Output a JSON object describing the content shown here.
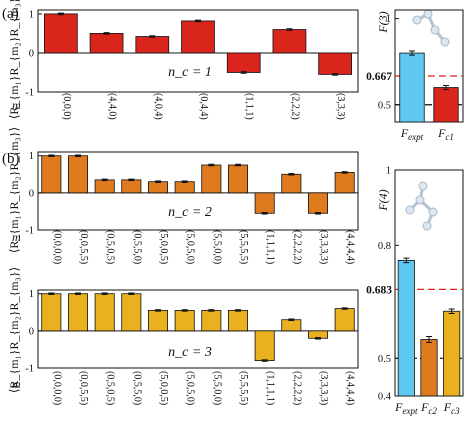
{
  "panel_labels": {
    "a": "(a)",
    "b": "(b)"
  },
  "m_label": "m⃗",
  "corr_ylabel": "⟨R_{m₁}R_{m₂}R_{m₃}⟩",
  "chart_data": [
    {
      "type": "bar",
      "panel": "a",
      "annotation": "n_c = 1",
      "color": "#d9251c",
      "categories": [
        "(0,0,0)",
        "(4,4,0)",
        "(4,0,4)",
        "(0,4,4)",
        "(1,1,1)",
        "(2,2,2)",
        "(3,3,3)"
      ],
      "values": [
        1.0,
        0.5,
        0.42,
        0.82,
        -0.5,
        0.6,
        -0.55
      ],
      "errors": [
        0.02,
        0.02,
        0.02,
        0.02,
        0.02,
        0.02,
        0.02
      ],
      "yticks": [
        -1,
        0,
        1
      ],
      "ylim": [
        -1,
        1.1
      ]
    },
    {
      "type": "bar",
      "panel": "b-top",
      "annotation": "n_c = 2",
      "color": "#e07a1f",
      "categories": [
        "(0,0,0,0)",
        "(0,0,5,5)",
        "(0,5,0,5)",
        "(0,5,5,0)",
        "(5,0,0,5)",
        "(5,0,5,0)",
        "(5,5,0,0)",
        "(5,5,5,5)",
        "(1,1,1,1)",
        "(2,2,2,2)",
        "(3,3,3,3)",
        "(4,4,4,4)"
      ],
      "values": [
        1.0,
        1.0,
        0.35,
        0.35,
        0.3,
        0.3,
        0.75,
        0.75,
        -0.55,
        0.5,
        -0.55,
        0.55
      ],
      "errors": [
        0.02,
        0.02,
        0.02,
        0.02,
        0.02,
        0.02,
        0.02,
        0.02,
        0.02,
        0.02,
        0.02,
        0.02
      ],
      "yticks": [
        -1,
        0,
        1
      ],
      "ylim": [
        -1,
        1.1
      ]
    },
    {
      "type": "bar",
      "panel": "b-bottom",
      "annotation": "n_c = 3",
      "color": "#e9b01f",
      "categories": [
        "(0,0,0,0)",
        "(0,0,5,5)",
        "(0,5,0,5)",
        "(0,5,5,0)",
        "(5,0,0,5)",
        "(5,0,5,0)",
        "(5,5,0,0)",
        "(5,5,5,5)",
        "(1,1,1,1)",
        "(2,2,2,2)",
        "(3,3,3,3)",
        "(4,4,4,4)"
      ],
      "values": [
        1.0,
        1.0,
        1.0,
        1.0,
        0.55,
        0.55,
        0.55,
        0.55,
        -0.8,
        0.3,
        -0.2,
        0.6
      ],
      "errors": [
        0.02,
        0.02,
        0.02,
        0.02,
        0.02,
        0.02,
        0.02,
        0.02,
        0.02,
        0.02,
        0.02,
        0.02
      ],
      "yticks": [
        -1,
        0,
        1
      ],
      "ylim": [
        -1,
        1.1
      ]
    },
    {
      "type": "bar",
      "panel": "a-right",
      "ylabel": "F(3)",
      "categories": [
        "F_expt",
        "F_c1"
      ],
      "values": [
        0.8,
        0.6
      ],
      "errors": [
        0.012,
        0.012
      ],
      "colors": [
        "#5fc8f0",
        "#d9251c"
      ],
      "yticks": [
        0.5,
        1
      ],
      "ylim": [
        0.4,
        1.05
      ],
      "reference_lines": [
        {
          "value": 0.667,
          "label": "0.667",
          "color": "#d9251c",
          "style": "dashed"
        },
        {
          "value": 0.5,
          "label": "",
          "color": "#111111",
          "style": "dashdot"
        }
      ]
    },
    {
      "type": "bar",
      "panel": "b-right",
      "ylabel": "F(4)",
      "categories": [
        "F_expt",
        "F_c2",
        "F_c3"
      ],
      "values": [
        0.76,
        0.55,
        0.625
      ],
      "errors": [
        0.006,
        0.008,
        0.006
      ],
      "colors": [
        "#5fc8f0",
        "#e07a1f",
        "#e9b01f"
      ],
      "yticks": [
        0.4,
        0.5,
        0.8,
        1
      ],
      "ylim": [
        0.4,
        1.0
      ],
      "reference_lines": [
        {
          "value": 0.683,
          "label": "0.683",
          "color": "#d9251c",
          "style": "dashed"
        },
        {
          "value": 0.5,
          "label": "",
          "color": "#111111",
          "style": "dashdot"
        }
      ]
    }
  ]
}
